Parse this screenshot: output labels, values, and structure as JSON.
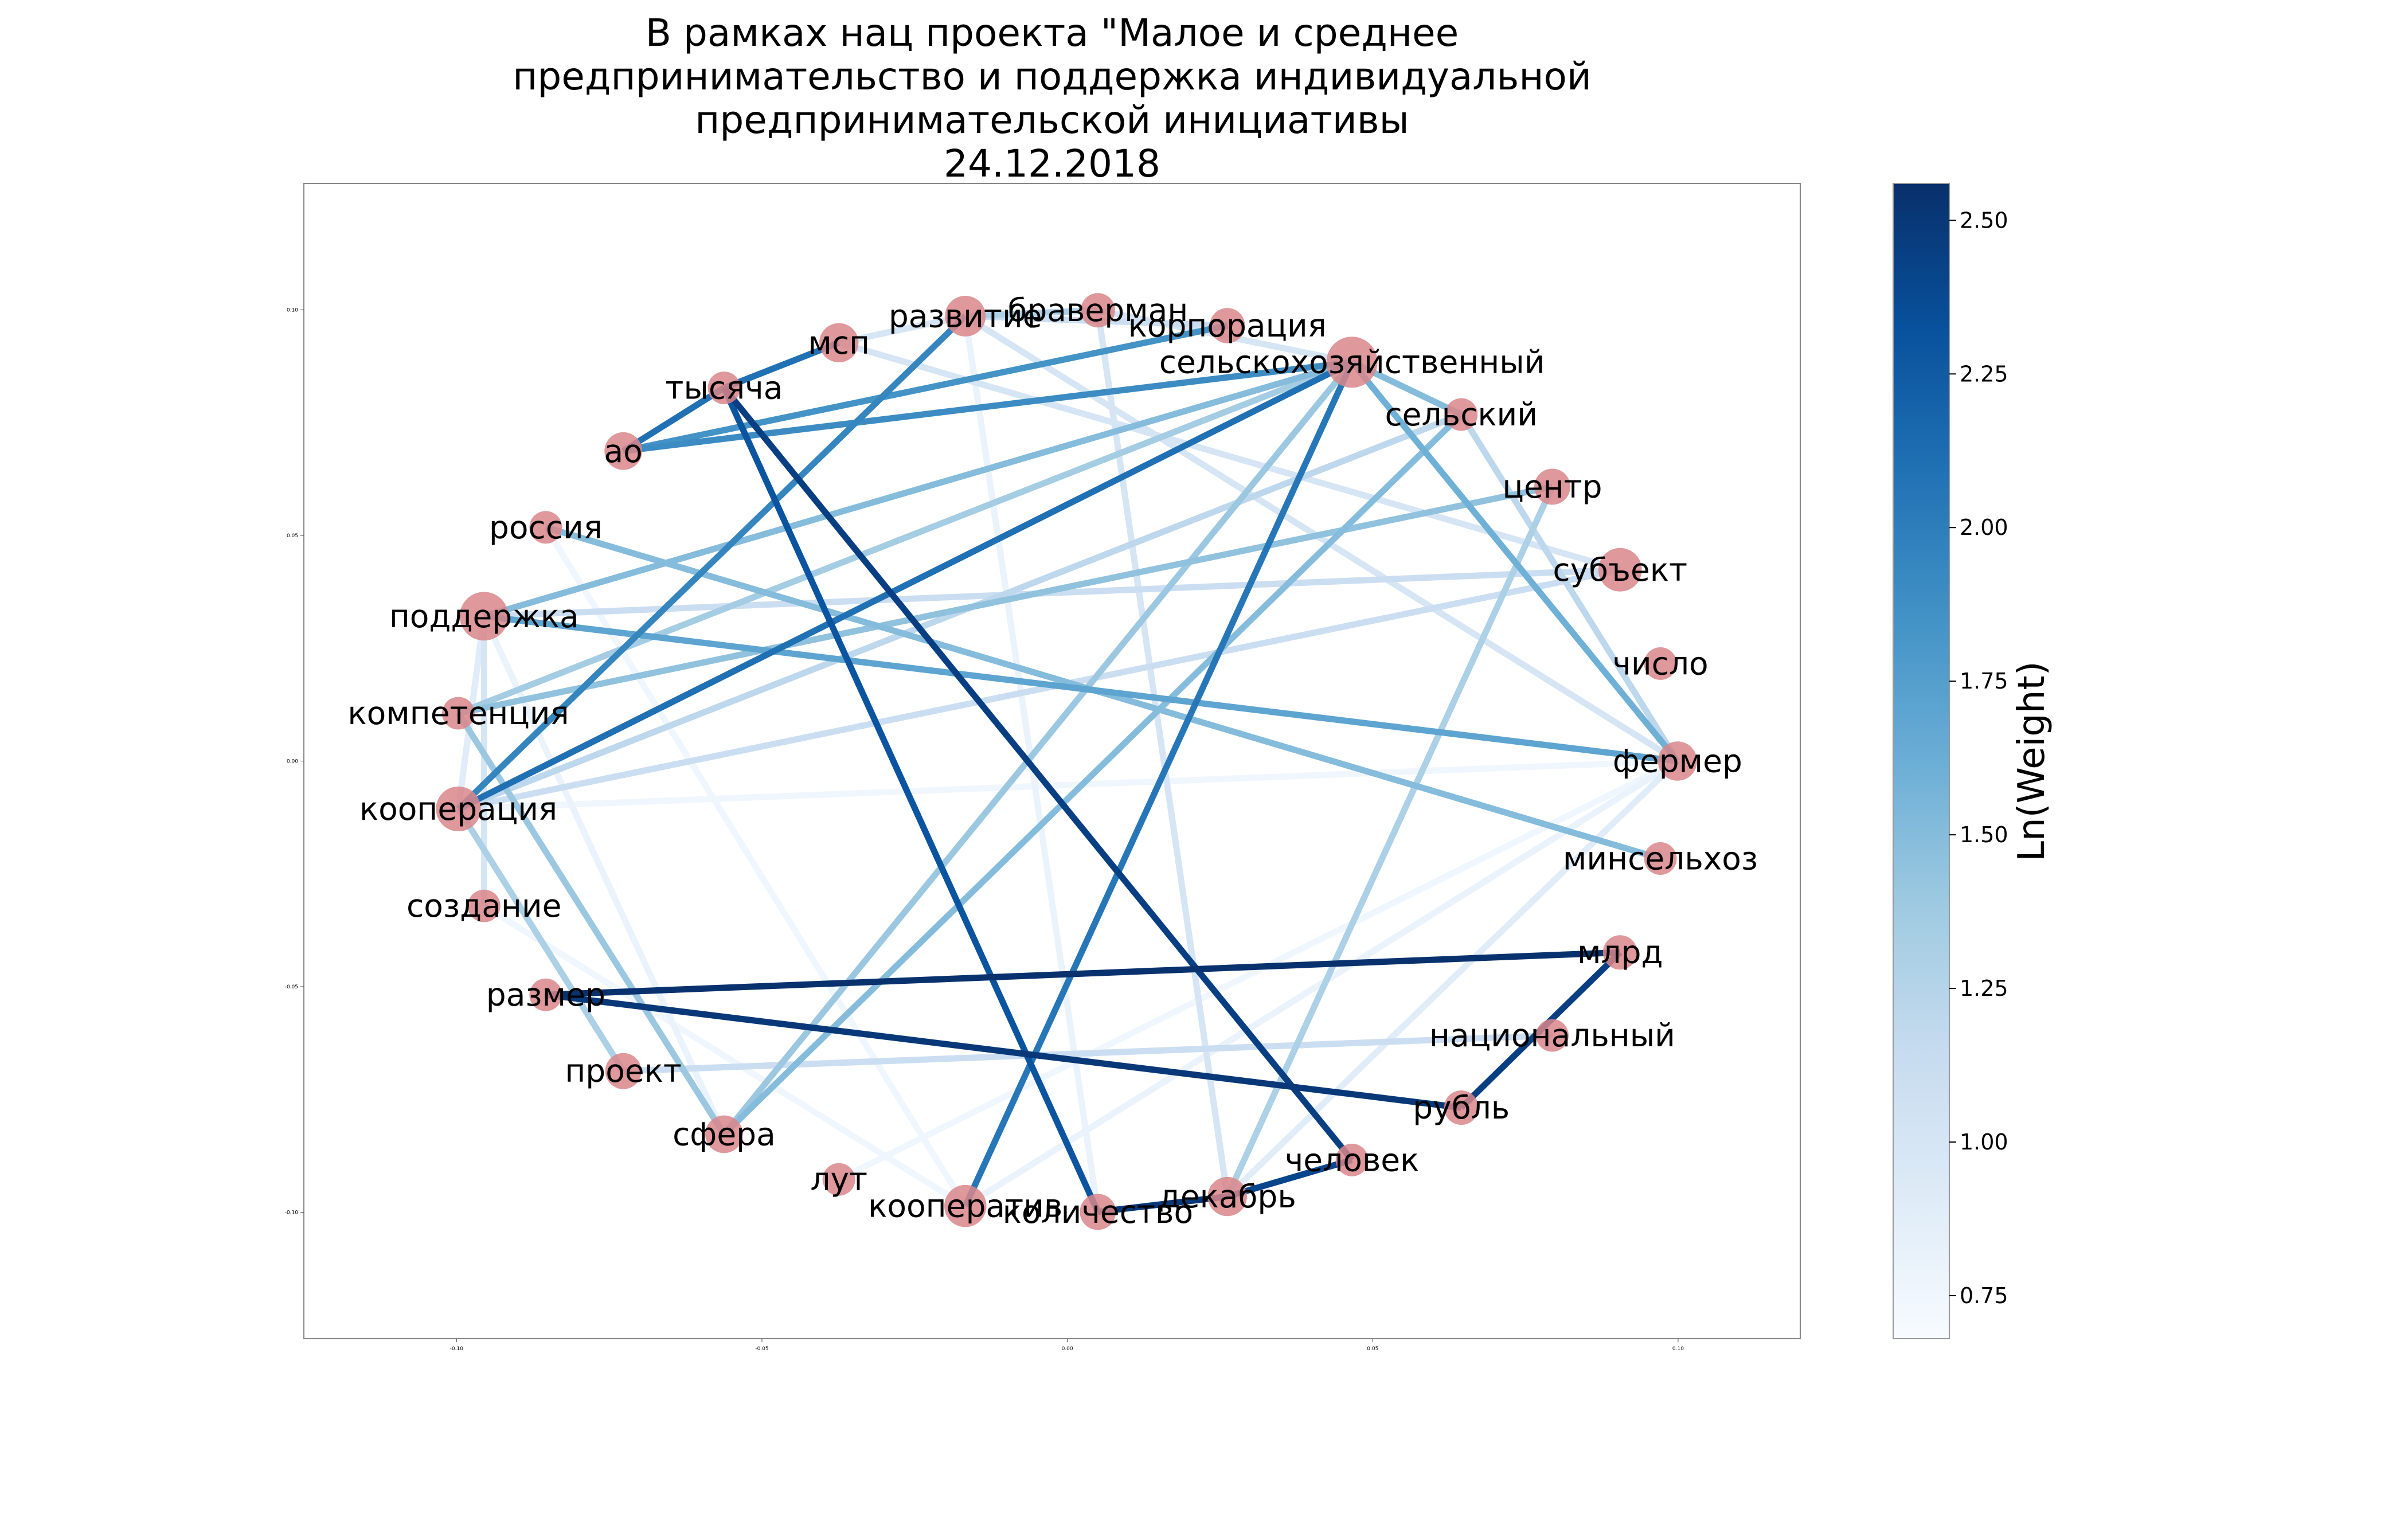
{
  "title_lines": [
    "В рамках нац проекта \"Малое и среднее",
    "предпринимательство и поддержка индивидуальной",
    "предпринимательской инициативы",
    "24.12.2018"
  ],
  "chart_data": {
    "type": "network",
    "xlim": [
      -0.125,
      0.12
    ],
    "ylim": [
      -0.128,
      0.128
    ],
    "x_ticks": [
      {
        "value": -0.1,
        "label": "-0.10"
      },
      {
        "value": -0.05,
        "label": "-0.05"
      },
      {
        "value": 0.0,
        "label": "0.00"
      },
      {
        "value": 0.05,
        "label": "0.05"
      },
      {
        "value": 0.1,
        "label": "0.10"
      }
    ],
    "y_ticks": [
      {
        "value": 0.1,
        "label": "0.10"
      },
      {
        "value": 0.05,
        "label": "0.05"
      },
      {
        "value": 0.0,
        "label": "0.00"
      },
      {
        "value": -0.05,
        "label": "-0.05"
      },
      {
        "value": -0.1,
        "label": "-0.10"
      }
    ],
    "node_color": "#d9868a",
    "nodes": [
      {
        "id": "развитие",
        "x": -0.0167,
        "y": 0.0986,
        "size": 1.4
      },
      {
        "id": "браверман",
        "x": 0.005,
        "y": 0.0999,
        "size": 1.0
      },
      {
        "id": "корпорация",
        "x": 0.0262,
        "y": 0.0965,
        "size": 1.05
      },
      {
        "id": "сельскохозяйственный",
        "x": 0.0466,
        "y": 0.0884,
        "size": 2.2
      },
      {
        "id": "сельский",
        "x": 0.0645,
        "y": 0.0768,
        "size": 0.9
      },
      {
        "id": "центр",
        "x": 0.0794,
        "y": 0.0608,
        "size": 1.1
      },
      {
        "id": "субъект",
        "x": 0.0905,
        "y": 0.0424,
        "size": 1.6
      },
      {
        "id": "число",
        "x": 0.0971,
        "y": 0.0216,
        "size": 0.9
      },
      {
        "id": "фермер",
        "x": 0.0999,
        "y": 0.0,
        "size": 1.3
      },
      {
        "id": "минсельхоз",
        "x": 0.0971,
        "y": -0.0216,
        "size": 0.9
      },
      {
        "id": "млрд",
        "x": 0.0905,
        "y": -0.0424,
        "size": 1.0
      },
      {
        "id": "национальный",
        "x": 0.0794,
        "y": -0.0608,
        "size": 0.9
      },
      {
        "id": "рубль",
        "x": 0.0645,
        "y": -0.0768,
        "size": 1.0
      },
      {
        "id": "человек",
        "x": 0.0466,
        "y": -0.0884,
        "size": 0.9
      },
      {
        "id": "декабрь",
        "x": 0.0262,
        "y": -0.0965,
        "size": 1.3
      },
      {
        "id": "количество",
        "x": 0.005,
        "y": -0.0999,
        "size": 1.1
      },
      {
        "id": "кооператив",
        "x": -0.0167,
        "y": -0.0986,
        "size": 1.5
      },
      {
        "id": "лут",
        "x": -0.0374,
        "y": -0.0927,
        "size": 0.9
      },
      {
        "id": "сфера",
        "x": -0.0562,
        "y": -0.0827,
        "size": 1.2
      },
      {
        "id": "проект",
        "x": -0.0727,
        "y": -0.0687,
        "size": 1.1
      },
      {
        "id": "размер",
        "x": -0.0854,
        "y": -0.0518,
        "size": 0.9
      },
      {
        "id": "создание",
        "x": -0.0955,
        "y": -0.0321,
        "size": 0.9
      },
      {
        "id": "кооперация",
        "x": -0.0997,
        "y": -0.0106,
        "size": 1.7
      },
      {
        "id": "компетенция",
        "x": -0.0997,
        "y": 0.0106,
        "size": 0.9
      },
      {
        "id": "поддержка",
        "x": -0.0955,
        "y": 0.0321,
        "size": 2.0
      },
      {
        "id": "россия",
        "x": -0.0854,
        "y": 0.0518,
        "size": 0.9
      },
      {
        "id": "ао",
        "x": -0.0727,
        "y": 0.0687,
        "size": 1.2
      },
      {
        "id": "тысяча",
        "x": -0.0562,
        "y": 0.0827,
        "size": 0.9
      },
      {
        "id": "мсп",
        "x": -0.0374,
        "y": 0.0927,
        "size": 1.3
      }
    ],
    "edges": [
      {
        "source": "мсп",
        "target": "тысяча",
        "weight": 2.1
      },
      {
        "source": "мсп",
        "target": "развитие",
        "weight": 1.0
      },
      {
        "source": "мсп",
        "target": "субъект",
        "weight": 1.0
      },
      {
        "source": "развитие",
        "target": "браверман",
        "weight": 1.3
      },
      {
        "source": "развитие",
        "target": "корпорация",
        "weight": 1.1
      },
      {
        "source": "развитие",
        "target": "кооперация",
        "weight": 1.95
      },
      {
        "source": "развитие",
        "target": "фермер",
        "weight": 1.0
      },
      {
        "source": "развитие",
        "target": "количество",
        "weight": 0.8
      },
      {
        "source": "браверман",
        "target": "сельскохозяйственный",
        "weight": 1.0
      },
      {
        "source": "браверман",
        "target": "декабрь",
        "weight": 1.0
      },
      {
        "source": "тысяча",
        "target": "ао",
        "weight": 2.1
      },
      {
        "source": "тысяча",
        "target": "человек",
        "weight": 2.45
      },
      {
        "source": "тысяча",
        "target": "количество",
        "weight": 2.3
      },
      {
        "source": "ао",
        "target": "сельскохозяйственный",
        "weight": 1.9
      },
      {
        "source": "ао",
        "target": "корпорация",
        "weight": 1.85
      },
      {
        "source": "сельскохозяйственный",
        "target": "поддержка",
        "weight": 1.5
      },
      {
        "source": "сельскохозяйственный",
        "target": "компетенция",
        "weight": 1.35
      },
      {
        "source": "сельскохозяйственный",
        "target": "кооперация",
        "weight": 2.1
      },
      {
        "source": "сельскохозяйственный",
        "target": "кооператив",
        "weight": 2.05
      },
      {
        "source": "сельскохозяйственный",
        "target": "сфера",
        "weight": 1.4
      },
      {
        "source": "сельскохозяйственный",
        "target": "сельский",
        "weight": 1.5
      },
      {
        "source": "сельскохозяйственный",
        "target": "фермер",
        "weight": 1.6
      },
      {
        "source": "сельский",
        "target": "кооперация",
        "weight": 1.2
      },
      {
        "source": "сельский",
        "target": "сфера",
        "weight": 1.5
      },
      {
        "source": "сельский",
        "target": "фермер",
        "weight": 1.2
      },
      {
        "source": "центр",
        "target": "компетенция",
        "weight": 1.45
      },
      {
        "source": "центр",
        "target": "декабрь",
        "weight": 1.3
      },
      {
        "source": "субъект",
        "target": "кооперация",
        "weight": 1.1
      },
      {
        "source": "субъект",
        "target": "поддержка",
        "weight": 1.1
      },
      {
        "source": "поддержка",
        "target": "фермер",
        "weight": 1.7
      },
      {
        "source": "поддержка",
        "target": "создание",
        "weight": 1.0
      },
      {
        "source": "поддержка",
        "target": "кооперация",
        "weight": 0.9
      },
      {
        "source": "поддержка",
        "target": "сфера",
        "weight": 0.8
      },
      {
        "source": "россия",
        "target": "минсельхоз",
        "weight": 1.5
      },
      {
        "source": "компетенция",
        "target": "сфера",
        "weight": 1.4
      },
      {
        "source": "кооперация",
        "target": "проект",
        "weight": 1.3
      },
      {
        "source": "кооперация",
        "target": "фермер",
        "weight": 0.75
      },
      {
        "source": "проект",
        "target": "национальный",
        "weight": 1.1
      },
      {
        "source": "размер",
        "target": "млрд",
        "weight": 2.55
      },
      {
        "source": "размер",
        "target": "рубль",
        "weight": 2.5
      },
      {
        "source": "рубль",
        "target": "млрд",
        "weight": 2.45
      },
      {
        "source": "количество",
        "target": "декабрь",
        "weight": 2.5
      },
      {
        "source": "декабрь",
        "target": "человек",
        "weight": 2.4
      },
      {
        "source": "декабрь",
        "target": "фермер",
        "weight": 0.9
      },
      {
        "source": "кооператив",
        "target": "фермер",
        "weight": 0.8
      },
      {
        "source": "лут",
        "target": "фермер",
        "weight": 0.75
      },
      {
        "source": "создание",
        "target": "кооператив",
        "weight": 0.75
      },
      {
        "source": "россия",
        "target": "кооператив",
        "weight": 0.75
      }
    ],
    "colorbar": {
      "label": "Ln(Weight)",
      "range": [
        0.68,
        2.56
      ],
      "ticks": [
        "0.75",
        "1.00",
        "1.25",
        "1.50",
        "1.75",
        "2.00",
        "2.25",
        "2.50"
      ],
      "colormap": "Blues",
      "colors": [
        "#f7fbff",
        "#deebf7",
        "#c6dbef",
        "#9ecae1",
        "#6baed6",
        "#4292c6",
        "#2171b5",
        "#08519c",
        "#08306b"
      ]
    }
  }
}
